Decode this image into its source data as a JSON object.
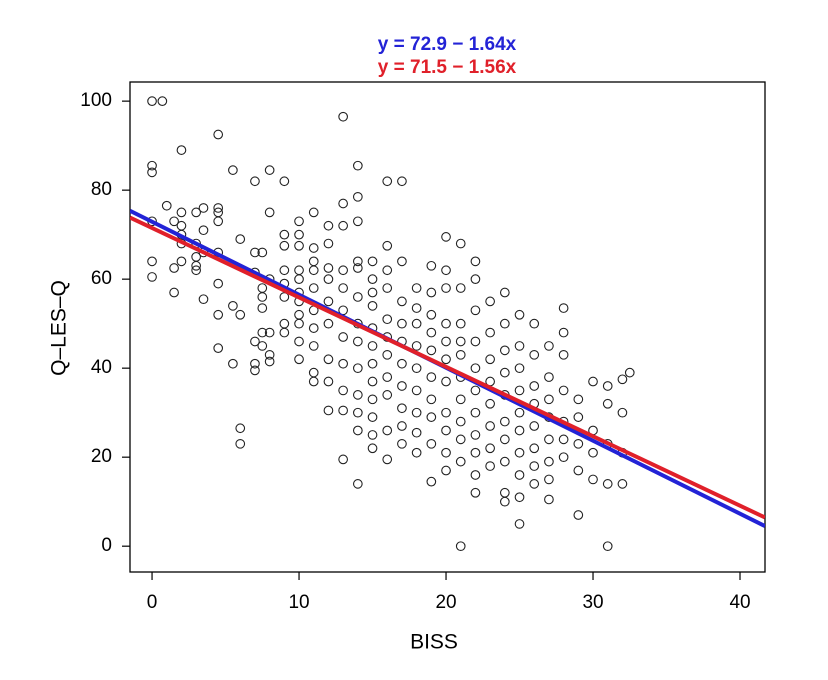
{
  "chart_data": {
    "type": "scatter",
    "title_lines": [
      {
        "text": "y = 72.9 − 1.64x",
        "color": "#2323d6"
      },
      {
        "text": "y = 71.5 − 1.56x",
        "color": "#e0202a"
      }
    ],
    "x_label": "BISS",
    "y_label": "Q–LES–Q",
    "xlim": [
      -1.5,
      41.7
    ],
    "ylim": [
      -5.8,
      104.3
    ],
    "xticks": [
      0,
      10,
      20,
      30,
      40
    ],
    "yticks": [
      0,
      20,
      40,
      60,
      80,
      100
    ],
    "grid": false,
    "lines": [
      {
        "name": "y = 72.9 − 1.64x",
        "color": "#2323d6",
        "intercept": 72.9,
        "slope": -1.64
      },
      {
        "name": "y = 71.5 − 1.56x",
        "color": "#e0202a",
        "intercept": 71.5,
        "slope": -1.56
      }
    ],
    "series": [
      {
        "color": "#222222",
        "x": [
          0,
          0,
          0,
          0,
          0,
          0,
          0.7,
          1,
          1.5,
          1.5,
          1.5,
          2,
          2,
          2,
          2,
          2,
          2,
          3,
          3,
          3,
          3,
          3,
          3.5,
          3.5,
          3.5,
          3.5,
          4.5,
          4.5,
          4.5,
          4.5,
          4.5,
          4.5,
          4.5,
          4.5,
          5.5,
          5.5,
          5.5,
          6,
          6,
          6,
          6,
          7,
          7,
          7,
          7,
          7,
          7,
          7.5,
          7.5,
          7.5,
          7.5,
          7.5,
          7.5,
          8,
          8,
          8,
          8,
          8,
          8,
          9,
          9,
          9,
          9,
          9,
          9,
          9,
          9,
          10,
          10,
          10,
          10,
          10,
          10,
          10,
          10,
          10,
          10,
          10,
          11,
          11,
          11,
          11,
          11,
          11,
          11,
          11,
          11,
          11,
          12,
          12,
          12,
          12,
          12,
          12,
          12,
          12,
          12,
          13,
          13,
          13,
          13,
          13,
          13,
          13,
          13,
          13,
          13,
          13,
          14,
          14,
          14,
          14,
          14,
          14,
          14,
          14,
          14,
          14,
          14,
          14,
          14,
          15,
          15,
          15,
          15,
          15,
          15,
          15,
          15,
          15,
          15,
          15,
          15,
          16,
          16,
          16,
          16,
          16,
          16,
          16,
          16,
          16,
          16,
          16,
          17,
          17,
          17,
          17,
          17,
          17,
          17,
          17,
          17,
          17,
          18,
          18,
          18,
          18,
          18,
          18,
          18,
          18,
          18,
          19,
          19,
          19,
          19,
          19,
          19,
          19,
          19,
          19,
          19,
          20,
          20,
          20,
          20,
          20,
          20,
          20,
          20,
          20,
          20,
          20,
          21,
          21,
          21,
          21,
          21,
          21,
          21,
          21,
          21,
          21,
          21,
          22,
          22,
          22,
          22,
          22,
          22,
          22,
          22,
          22,
          22,
          22,
          23,
          23,
          23,
          23,
          23,
          23,
          23,
          23,
          24,
          24,
          24,
          24,
          24,
          24,
          24,
          24,
          24,
          24,
          25,
          25,
          25,
          25,
          25,
          25,
          25,
          25,
          25,
          25,
          26,
          26,
          26,
          26,
          26,
          26,
          26,
          26,
          27,
          27,
          27,
          27,
          27,
          27,
          27,
          27,
          28,
          28,
          28,
          28,
          28,
          28,
          28,
          29,
          29,
          29,
          29,
          29,
          30,
          30,
          30,
          30,
          31,
          31,
          31,
          31,
          31,
          32,
          32,
          32,
          32,
          32.5
        ],
        "values": [
          100,
          85.5,
          84,
          73,
          64,
          60.5,
          100,
          76.5,
          73,
          57,
          62.5,
          89,
          75,
          72,
          70,
          68,
          64,
          75,
          68,
          65,
          63,
          62,
          76,
          71,
          66,
          55.5,
          92.5,
          76,
          75,
          73,
          66,
          59,
          52,
          44.5,
          84.5,
          54,
          41,
          69,
          26.5,
          23,
          52,
          82,
          66,
          61.5,
          46,
          41,
          39.5,
          66,
          58,
          56,
          53.5,
          48,
          45,
          84.5,
          75,
          60,
          48,
          43,
          41.5,
          82,
          70,
          67.5,
          62,
          59,
          56,
          50,
          48,
          73,
          70,
          67.5,
          62,
          60,
          57,
          55,
          52,
          50,
          46,
          42,
          75,
          67,
          64,
          62,
          58,
          53,
          49,
          45,
          39,
          37,
          72,
          68,
          62.5,
          60,
          55,
          50,
          42,
          37,
          30.5,
          96.5,
          77,
          72,
          62,
          58,
          53,
          47,
          41,
          35,
          30.5,
          19.5,
          85.5,
          78.5,
          73,
          64,
          62.5,
          56,
          50,
          46,
          40,
          34,
          30,
          14,
          26,
          64,
          60,
          57,
          54,
          49,
          45,
          41,
          37,
          33,
          29,
          25,
          22,
          82,
          67.5,
          62,
          58,
          51,
          47,
          43,
          38,
          34,
          26,
          19.5,
          82,
          64,
          55,
          50,
          46,
          41,
          36,
          31,
          27,
          23,
          58,
          53.5,
          50,
          45,
          40,
          35,
          30,
          25.5,
          21,
          63,
          57,
          52,
          48,
          44,
          38,
          33,
          29,
          23,
          14.5,
          69.5,
          62,
          58,
          50,
          46,
          42,
          37,
          30,
          26,
          21,
          17,
          68,
          58,
          50,
          46,
          43,
          38,
          33,
          28,
          24,
          19,
          0,
          64,
          60,
          53,
          46,
          40,
          35,
          30,
          25,
          21,
          16,
          12,
          55,
          48,
          42,
          37,
          32,
          27,
          22,
          18,
          57,
          50,
          44,
          39,
          34,
          28,
          24,
          19,
          12,
          10,
          52,
          45,
          40,
          35,
          30,
          26,
          21,
          16,
          11,
          5,
          50,
          43,
          36,
          32,
          27,
          22,
          18,
          14,
          45,
          38,
          33,
          29,
          24,
          19,
          15,
          10.5,
          53.5,
          48,
          43,
          35,
          28,
          24,
          20,
          33,
          29,
          23,
          17,
          7,
          37,
          26,
          21,
          15,
          36,
          32,
          23,
          14,
          0,
          30,
          21,
          14,
          37.5,
          39
        ]
      }
    ]
  }
}
